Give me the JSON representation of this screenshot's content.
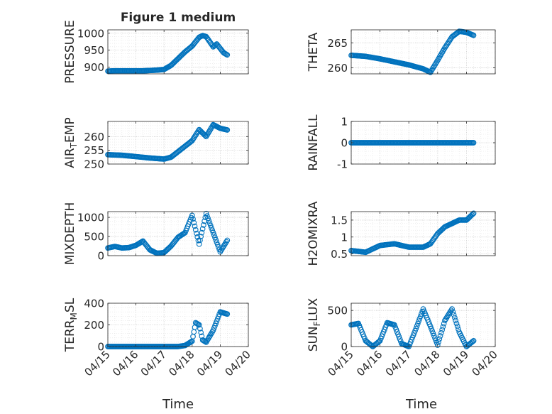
{
  "chart_data": {
    "type": "scatter",
    "title": "Figure 1 medium",
    "marker_color": "#0072BD",
    "marker": "open-circle",
    "grid": "major and minor, dotted",
    "x_unit": "date",
    "x_ticks": [
      "04/15",
      "04/16",
      "04/17",
      "04/18",
      "04/19",
      "04/20"
    ],
    "xlabel": "Time",
    "panels": [
      {
        "ylabel": "PRESSURE",
        "ylim": [
          880,
          1010
        ],
        "yticks": [
          "900",
          "950",
          "1000"
        ],
        "series": [
          {
            "x": [
              "04/15 00:00",
              "04/15 06:00",
              "04/15 12:00",
              "04/15 18:00",
              "04/16 00:00",
              "04/16 06:00",
              "04/16 12:00",
              "04/16 18:00",
              "04/17 00:00",
              "04/17 06:00",
              "04/17 12:00",
              "04/17 18:00",
              "04/18 00:00",
              "04/18 03:00",
              "04/18 06:00",
              "04/18 09:00",
              "04/18 12:00",
              "04/18 15:00",
              "04/18 18:00",
              "04/18 21:00",
              "04/19 00:00",
              "04/19 03:00",
              "04/19 06:00"
            ],
            "y": [
              888,
              889,
              889,
              889,
              889,
              889,
              890,
              891,
              893,
              905,
              925,
              945,
              962,
              975,
              988,
              993,
              990,
              975,
              960,
              968,
              955,
              942,
              936
            ]
          }
        ]
      },
      {
        "ylabel": "THETA",
        "ylim": [
          258.8,
          267.6
        ],
        "yticks": [
          "260",
          "265"
        ],
        "series": [
          {
            "x": [
              "04/15 00:00",
              "04/15 12:00",
              "04/16 00:00",
              "04/16 12:00",
              "04/17 00:00",
              "04/17 12:00",
              "04/17 18:00",
              "04/18 00:00",
              "04/18 06:00",
              "04/18 12:00",
              "04/18 18:00",
              "04/19 00:00",
              "04/19 06:00"
            ],
            "y": [
              262.5,
              262.3,
              261.8,
              261.2,
              260.6,
              259.8,
              259.1,
              261.5,
              264,
              266.2,
              267.3,
              267.1,
              266.5
            ]
          }
        ]
      },
      {
        "ylabel": "AIR_TEMP",
        "ylim": [
          250,
          265.5
        ],
        "yticks": [
          "250",
          "255",
          "260"
        ],
        "series": [
          {
            "x": [
              "04/15 00:00",
              "04/15 12:00",
              "04/16 00:00",
              "04/16 12:00",
              "04/17 00:00",
              "04/17 06:00",
              "04/17 12:00",
              "04/17 18:00",
              "04/18 00:00",
              "04/18 06:00",
              "04/18 12:00",
              "04/18 18:00",
              "04/19 00:00",
              "04/19 06:00"
            ],
            "y": [
              253.4,
              253.2,
              252.7,
              252.2,
              251.8,
              252.5,
              254.5,
              256.5,
              258.5,
              262.5,
              260,
              264.3,
              263,
              262.4
            ]
          }
        ]
      },
      {
        "ylabel": "RAINFALL",
        "ylim": [
          -1,
          1
        ],
        "yticks": [
          "-1",
          "0",
          "1"
        ],
        "series": [
          {
            "x": [
              "04/15 00:00",
              "04/15 12:00",
              "04/16 00:00",
              "04/16 12:00",
              "04/17 00:00",
              "04/17 12:00",
              "04/18 00:00",
              "04/18 12:00",
              "04/19 00:00",
              "04/19 06:00"
            ],
            "y": [
              0,
              0,
              0,
              0,
              0,
              0,
              0,
              0,
              0,
              0
            ]
          }
        ]
      },
      {
        "ylabel": "MIXDEPTH",
        "ylim": [
          0,
          1150
        ],
        "yticks": [
          "0",
          "500",
          "1000"
        ],
        "series": [
          {
            "x": [
              "04/15 00:00",
              "04/15 06:00",
              "04/15 12:00",
              "04/15 18:00",
              "04/16 00:00",
              "04/16 06:00",
              "04/16 12:00",
              "04/16 18:00",
              "04/17 00:00",
              "04/17 06:00",
              "04/17 12:00",
              "04/17 18:00",
              "04/18 00:00",
              "04/18 06:00",
              "04/18 12:00",
              "04/18 18:00",
              "04/19 00:00",
              "04/19 06:00"
            ],
            "y": [
              200,
              240,
              200,
              210,
              270,
              380,
              150,
              60,
              80,
              250,
              480,
              600,
              1050,
              300,
              1100,
              600,
              100,
              400
            ]
          }
        ]
      },
      {
        "ylabel": "H2OMIXRA",
        "ylim": [
          0.45,
          1.75
        ],
        "yticks": [
          "0.5",
          "1",
          "1.5"
        ],
        "series": [
          {
            "x": [
              "04/15 00:00",
              "04/15 12:00",
              "04/16 00:00",
              "04/16 12:00",
              "04/17 00:00",
              "04/17 12:00",
              "04/17 18:00",
              "04/18 00:00",
              "04/18 06:00",
              "04/18 12:00",
              "04/18 18:00",
              "04/19 00:00",
              "04/19 06:00"
            ],
            "y": [
              0.6,
              0.55,
              0.75,
              0.8,
              0.7,
              0.7,
              0.8,
              1.1,
              1.3,
              1.4,
              1.5,
              1.5,
              1.7
            ]
          }
        ]
      },
      {
        "ylabel": "TERR_MSL",
        "ylim": [
          0,
          400
        ],
        "yticks": [
          "0",
          "200",
          "400"
        ],
        "series": [
          {
            "x": [
              "04/15 00:00",
              "04/15 12:00",
              "04/16 00:00",
              "04/16 12:00",
              "04/17 00:00",
              "04/17 12:00",
              "04/17 18:00",
              "04/18 00:00",
              "04/18 03:00",
              "04/18 06:00",
              "04/18 09:00",
              "04/18 12:00",
              "04/18 18:00",
              "04/19 00:00",
              "04/19 06:00"
            ],
            "y": [
              0,
              0,
              0,
              0,
              0,
              0,
              10,
              50,
              220,
              200,
              60,
              40,
              150,
              320,
              300
            ]
          }
        ]
      },
      {
        "ylabel": "SUN_FLUX",
        "ylim": [
          0,
          600
        ],
        "yticks": [
          "0",
          "500"
        ],
        "series": [
          {
            "x": [
              "04/15 00:00",
              "04/15 06:00",
              "04/15 12:00",
              "04/15 18:00",
              "04/16 00:00",
              "04/16 06:00",
              "04/16 12:00",
              "04/16 18:00",
              "04/17 00:00",
              "04/17 06:00",
              "04/17 12:00",
              "04/17 18:00",
              "04/18 00:00",
              "04/18 06:00",
              "04/18 12:00",
              "04/18 18:00",
              "04/19 00:00",
              "04/19 06:00"
            ],
            "y": [
              300,
              320,
              80,
              0,
              80,
              330,
              300,
              40,
              0,
              250,
              520,
              280,
              20,
              360,
              520,
              200,
              0,
              80
            ]
          }
        ]
      }
    ]
  }
}
